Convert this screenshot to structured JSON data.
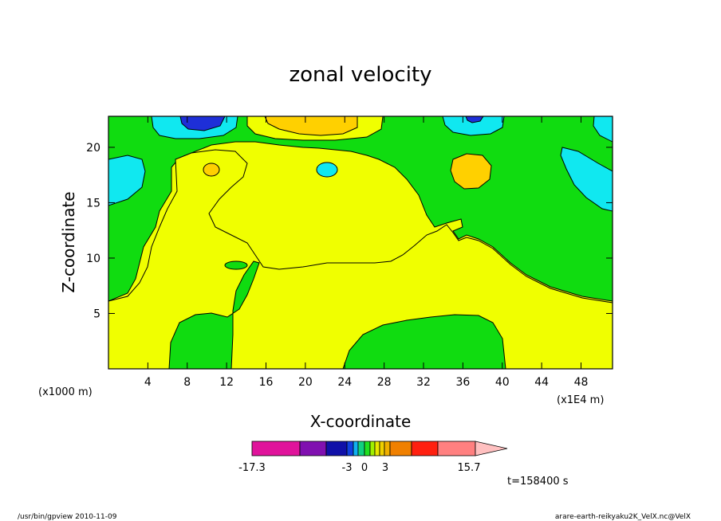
{
  "chart_data": {
    "type": "contour",
    "title": "zonal velocity",
    "xlabel": "X-coordinate",
    "ylabel": "Z-coordinate",
    "x_unit": "(x1E4 m)",
    "y_unit": "(x1000 m)",
    "xlim": [
      0,
      51.2
    ],
    "ylim": [
      0,
      22.8
    ],
    "xticks": [
      "4",
      "8",
      "12",
      "16",
      "20",
      "24",
      "28",
      "32",
      "36",
      "40",
      "44",
      "48"
    ],
    "yticks": [
      "5",
      "10",
      "15",
      "20"
    ],
    "time_label": "t=158400 s",
    "colorbar": {
      "labels": [
        "-17.3",
        "-3",
        "0",
        "3",
        "15.7"
      ],
      "colors": [
        "#e0139b",
        "#8010b0",
        "#1010a8",
        "#1040e0",
        "#10b0f0",
        "#10d080",
        "#20e020",
        "#a0f000",
        "#e8e800",
        "#f0d000",
        "#f0b000",
        "#f08000",
        "#ff2010",
        "#ff8080",
        "#ffc0c0"
      ]
    },
    "legend_colors": {
      "negative_strong": "#1e2fd8",
      "negative": "#10e8f0",
      "near_zero_neg": "#10dc10",
      "near_zero_pos": "#f0ff00",
      "positive": "#ffd000"
    }
  },
  "footer": {
    "left": "/usr/bin/gpview   2010-11-09",
    "right": "arare-earth-reikyaku2K_VelX.nc@VelX"
  }
}
